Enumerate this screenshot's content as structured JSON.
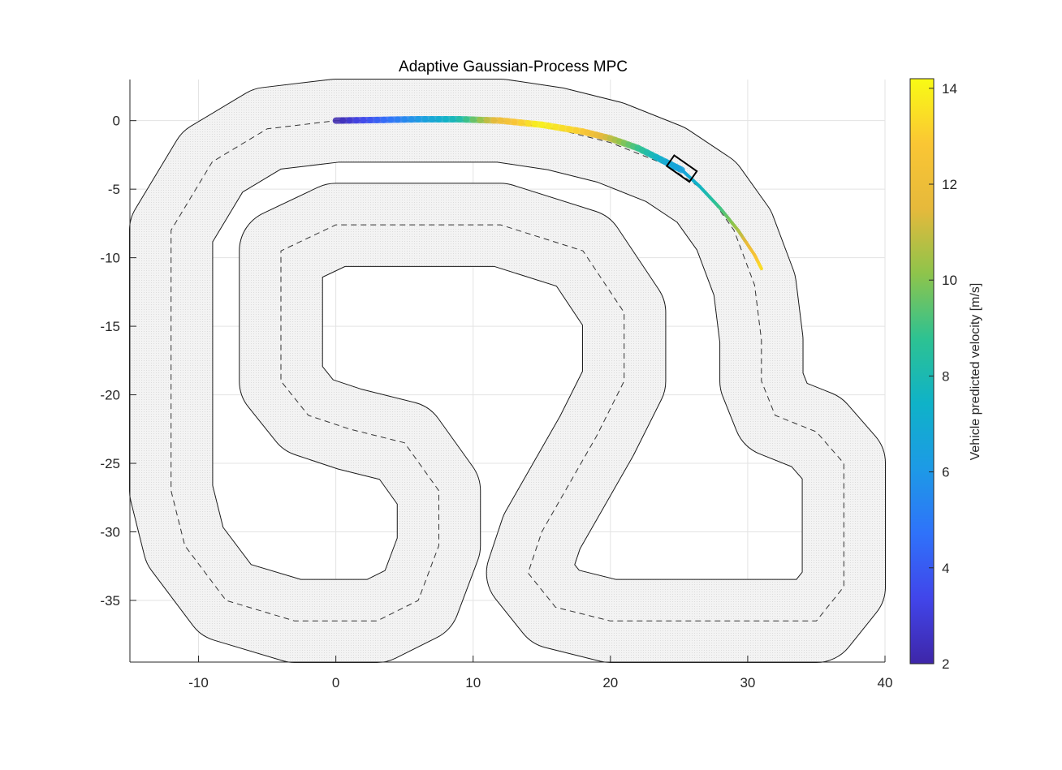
{
  "chart_data": {
    "type": "line",
    "title": "Adaptive Gaussian-Process MPC",
    "xlabel": "",
    "ylabel": "",
    "xlim": [
      -15,
      40
    ],
    "ylim": [
      -39.5,
      3
    ],
    "xticks": [
      -10,
      0,
      10,
      20,
      30,
      40
    ],
    "yticks": [
      0,
      -5,
      -10,
      -15,
      -20,
      -25,
      -30,
      -35
    ],
    "grid": true,
    "track": {
      "centerline": [
        [
          0,
          0
        ],
        [
          6,
          0
        ],
        [
          12,
          0
        ],
        [
          16,
          -0.6
        ],
        [
          20,
          -1.6
        ],
        [
          24,
          -3.2
        ],
        [
          27,
          -5.2
        ],
        [
          29,
          -8
        ],
        [
          30.5,
          -12
        ],
        [
          31,
          -16
        ],
        [
          31,
          -19
        ],
        [
          32,
          -21.5
        ],
        [
          35,
          -22.7
        ],
        [
          37,
          -25
        ],
        [
          37,
          -30
        ],
        [
          37,
          -34
        ],
        [
          35,
          -36.5
        ],
        [
          31,
          -36.5
        ],
        [
          20,
          -36.5
        ],
        [
          16,
          -35.5
        ],
        [
          14,
          -33
        ],
        [
          15,
          -30
        ],
        [
          19,
          -23
        ],
        [
          21,
          -19
        ],
        [
          21,
          -14
        ],
        [
          18,
          -9.5
        ],
        [
          12,
          -7.6
        ],
        [
          0,
          -7.6
        ],
        [
          -4,
          -9.5
        ],
        [
          -4,
          -16
        ],
        [
          -4,
          -19
        ],
        [
          -2,
          -21.5
        ],
        [
          1,
          -22.5
        ],
        [
          5,
          -23.5
        ],
        [
          7.5,
          -27
        ],
        [
          7.5,
          -31
        ],
        [
          6,
          -35
        ],
        [
          3,
          -36.5
        ],
        [
          -3,
          -36.5
        ],
        [
          -8,
          -35
        ],
        [
          -11,
          -31
        ],
        [
          -12,
          -27
        ],
        [
          -12,
          -18
        ],
        [
          -12,
          -8
        ],
        [
          -9,
          -3
        ],
        [
          -5,
          -0.6
        ],
        [
          0,
          0
        ]
      ],
      "half_width": 3
    },
    "series": [
      {
        "type": "trajectory",
        "x": [
          0,
          3,
          6,
          9,
          12,
          15,
          18,
          20,
          22,
          24,
          25.2
        ],
        "y": [
          0,
          0.05,
          0.1,
          0.1,
          0,
          -0.3,
          -0.8,
          -1.3,
          -2,
          -3,
          -3.6
        ],
        "velocity": [
          2,
          4,
          6,
          8,
          12,
          14,
          13,
          11,
          9,
          7,
          6.5
        ]
      },
      {
        "type": "prediction",
        "x": [
          25.2,
          26.5,
          28,
          29.3,
          30.5,
          31
        ],
        "y": [
          -3.6,
          -4.8,
          -6.4,
          -8,
          -9.8,
          -10.8
        ],
        "velocity": [
          6.5,
          7.5,
          9,
          10.5,
          12.5,
          13.5
        ]
      }
    ],
    "vehicle": {
      "x": 25.2,
      "y": -3.5,
      "heading_deg": -35
    },
    "colorbar": {
      "label": "Vehicle predicted velocity [m/s]",
      "range": [
        2,
        14.2
      ],
      "ticks": [
        2,
        4,
        6,
        8,
        10,
        12,
        14
      ],
      "colormap": [
        "#3e26a8",
        "#4145ea",
        "#2f72fa",
        "#1d9ae6",
        "#0fb2c8",
        "#2dc292",
        "#8ec44b",
        "#e6b93b",
        "#fac634",
        "#f9fb14"
      ]
    }
  }
}
